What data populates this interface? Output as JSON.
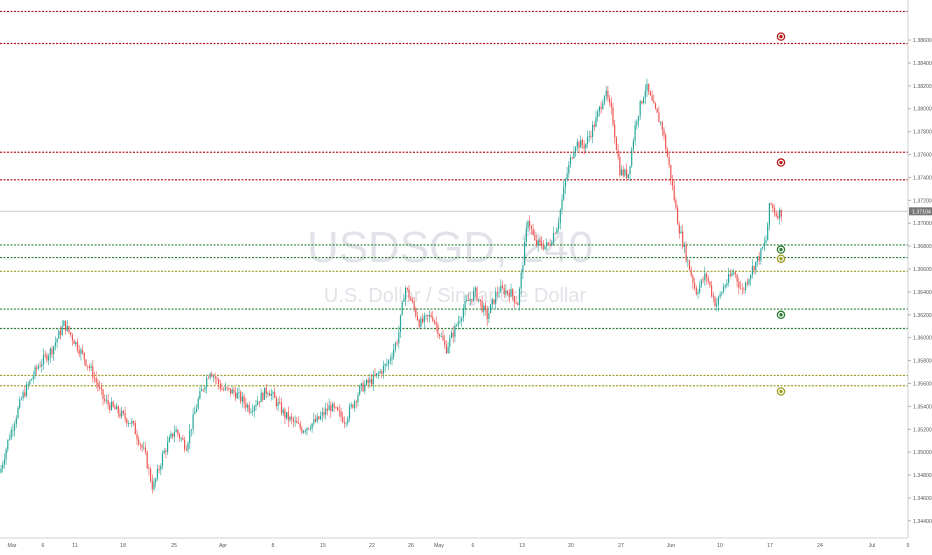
{
  "watermark": {
    "symbol": "USDSGD, 240",
    "description": "U.S. Dollar / Singapore Dollar"
  },
  "colors": {
    "up": "#26a69a",
    "down": "#ef5350",
    "resistance": "#b71c1c",
    "support": "#2e7d32",
    "support_yellow": "#9e9d24",
    "last_price_bg": "#777777",
    "axis_text": "#555555",
    "watermark": "#e1e3e8"
  },
  "chart_data": {
    "type": "candlestick",
    "ylim": [
      1.3425,
      1.3895
    ],
    "x_ticks": [
      "Mar",
      "6",
      "11",
      "18",
      "25",
      "Apr",
      "8",
      "15",
      "22",
      "26",
      "May",
      "6",
      "13",
      "20",
      "27",
      "Jun",
      "10",
      "17",
      "24",
      "Jul",
      "5"
    ],
    "y_ticks": [
      1.386,
      1.384,
      1.382,
      1.38,
      1.378,
      1.376,
      1.374,
      1.372,
      1.37,
      1.368,
      1.366,
      1.364,
      1.362,
      1.36,
      1.358,
      1.356,
      1.354,
      1.352,
      1.35,
      1.348,
      1.346,
      1.344
    ],
    "y_tick_labels": [
      "1.38600",
      "1.38400",
      "1.38200",
      "1.38000",
      "1.37800",
      "1.37600",
      "1.37400",
      "1.37200",
      "1.37000",
      "1.36800",
      "1.36600",
      "1.36400",
      "1.36200",
      "1.36000",
      "1.35800",
      "1.35600",
      "1.35400",
      "1.35200",
      "1.35000",
      "1.34800",
      "1.34600",
      "1.34400"
    ],
    "last_price": 1.37104,
    "last_price_label": "1.37104",
    "horizontal_levels": [
      {
        "price": 1.3885,
        "color": "resistance"
      },
      {
        "price": 1.3857,
        "color": "resistance"
      },
      {
        "price": 1.3762,
        "color": "resistance"
      },
      {
        "price": 1.3738,
        "color": "resistance"
      },
      {
        "price": 1.3681,
        "color": "support"
      },
      {
        "price": 1.367,
        "color": "support"
      },
      {
        "price": 1.3658,
        "color": "support_yellow"
      },
      {
        "price": 1.3625,
        "color": "support"
      },
      {
        "price": 1.3608,
        "color": "support"
      },
      {
        "price": 1.3567,
        "color": "support_yellow"
      },
      {
        "price": 1.3558,
        "color": "support_yellow"
      }
    ],
    "markers": [
      {
        "price": 1.3863,
        "color": "resistance"
      },
      {
        "price": 1.3753,
        "color": "resistance"
      },
      {
        "price": 1.3677,
        "color": "support"
      },
      {
        "price": 1.3669,
        "color": "support_yellow"
      },
      {
        "price": 1.362,
        "color": "support"
      },
      {
        "price": 1.3553,
        "color": "support_yellow"
      }
    ],
    "candle_path": [
      [
        0,
        1.3482
      ],
      [
        8,
        1.351
      ],
      [
        22,
        1.3548
      ],
      [
        38,
        1.3575
      ],
      [
        52,
        1.359
      ],
      [
        64,
        1.3612
      ],
      [
        78,
        1.3592
      ],
      [
        92,
        1.357
      ],
      [
        104,
        1.3545
      ],
      [
        118,
        1.3535
      ],
      [
        132,
        1.3525
      ],
      [
        145,
        1.3498
      ],
      [
        153,
        1.3468
      ],
      [
        163,
        1.3498
      ],
      [
        175,
        1.352
      ],
      [
        186,
        1.3505
      ],
      [
        198,
        1.3545
      ],
      [
        210,
        1.3572
      ],
      [
        222,
        1.3555
      ],
      [
        235,
        1.3552
      ],
      [
        250,
        1.3538
      ],
      [
        268,
        1.3555
      ],
      [
        285,
        1.3532
      ],
      [
        302,
        1.352
      ],
      [
        318,
        1.3528
      ],
      [
        330,
        1.354
      ],
      [
        345,
        1.3528
      ],
      [
        360,
        1.3555
      ],
      [
        375,
        1.3565
      ],
      [
        388,
        1.3578
      ],
      [
        398,
        1.36
      ],
      [
        405,
        1.3645
      ],
      [
        412,
        1.363
      ],
      [
        420,
        1.3612
      ],
      [
        432,
        1.362
      ],
      [
        446,
        1.359
      ],
      [
        455,
        1.3608
      ],
      [
        465,
        1.3628
      ],
      [
        475,
        1.364
      ],
      [
        487,
        1.3618
      ],
      [
        498,
        1.3642
      ],
      [
        510,
        1.364
      ],
      [
        518,
        1.363
      ],
      [
        522,
        1.366
      ],
      [
        528,
        1.3705
      ],
      [
        535,
        1.3682
      ],
      [
        548,
        1.368
      ],
      [
        558,
        1.37
      ],
      [
        566,
        1.374
      ],
      [
        575,
        1.377
      ],
      [
        585,
        1.3768
      ],
      [
        596,
        1.379
      ],
      [
        605,
        1.3815
      ],
      [
        612,
        1.3795
      ],
      [
        620,
        1.3745
      ],
      [
        628,
        1.3742
      ],
      [
        636,
        1.379
      ],
      [
        646,
        1.382
      ],
      [
        654,
        1.38
      ],
      [
        662,
        1.3785
      ],
      [
        670,
        1.3745
      ],
      [
        678,
        1.37
      ],
      [
        686,
        1.3672
      ],
      [
        696,
        1.364
      ],
      [
        706,
        1.3655
      ],
      [
        716,
        1.3628
      ],
      [
        724,
        1.3645
      ],
      [
        734,
        1.3658
      ],
      [
        742,
        1.364
      ],
      [
        752,
        1.366
      ],
      [
        760,
        1.3672
      ],
      [
        766,
        1.3685
      ],
      [
        770,
        1.3718
      ],
      [
        776,
        1.3708
      ],
      [
        782,
        1.371
      ]
    ]
  }
}
